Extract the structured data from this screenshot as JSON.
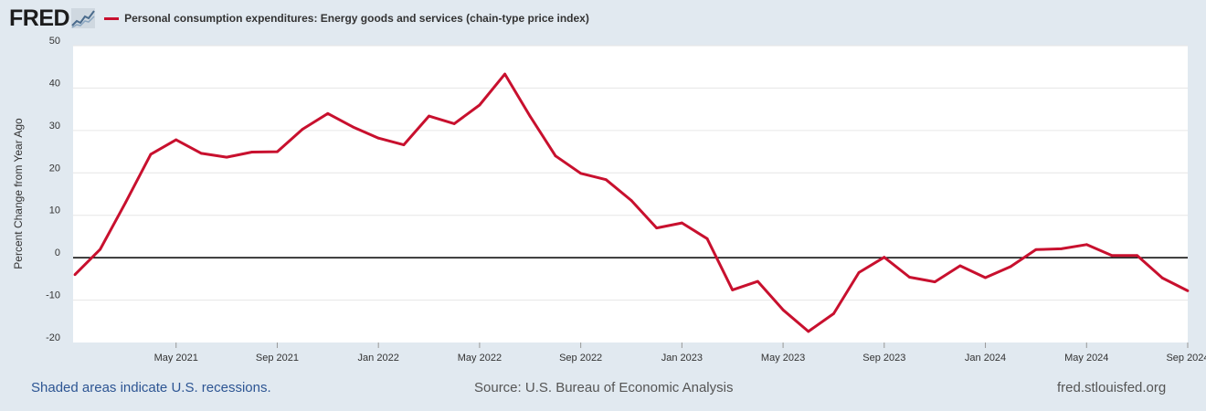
{
  "header": {
    "logo_text": "FRED",
    "series_title": "Personal consumption expenditures: Energy goods and services (chain-type price index)"
  },
  "footer": {
    "recession_note": "Shaded areas indicate U.S. recessions.",
    "source": "Source: U.S. Bureau of Economic Analysis",
    "site": "fred.stlouisfed.org"
  },
  "colors": {
    "line": "#c8102e",
    "background": "#e1e9f0",
    "plot": "#ffffff",
    "zero_line": "#000000"
  },
  "chart_data": {
    "type": "line",
    "title": "Personal consumption expenditures: Energy goods and services (chain-type price index)",
    "xlabel": "",
    "ylabel": "Percent Change from Year Ago",
    "ylim": [
      -20,
      50
    ],
    "yticks": [
      "50",
      "40",
      "30",
      "20",
      "10",
      "0",
      "-10",
      "-20"
    ],
    "ytick_values": [
      50,
      40,
      30,
      20,
      10,
      0,
      -10,
      -20
    ],
    "xticks": [
      {
        "label": "May 2021",
        "index": 4
      },
      {
        "label": "Sep 2021",
        "index": 8
      },
      {
        "label": "Jan 2022",
        "index": 12
      },
      {
        "label": "May 2022",
        "index": 16
      },
      {
        "label": "Sep 2022",
        "index": 20
      },
      {
        "label": "Jan 2023",
        "index": 24
      },
      {
        "label": "May 2023",
        "index": 28
      },
      {
        "label": "Sep 2023",
        "index": 32
      },
      {
        "label": "Jan 2024",
        "index": 36
      },
      {
        "label": "May 2024",
        "index": 40
      },
      {
        "label": "Sep 2024",
        "index": 44
      }
    ],
    "grid": true,
    "series": [
      {
        "name": "Personal consumption expenditures: Energy goods and services (chain-type price index)",
        "x": [
          "Jan 2021",
          "Feb 2021",
          "Mar 2021",
          "Apr 2021",
          "May 2021",
          "Jun 2021",
          "Jul 2021",
          "Aug 2021",
          "Sep 2021",
          "Oct 2021",
          "Nov 2021",
          "Dec 2021",
          "Jan 2022",
          "Feb 2022",
          "Mar 2022",
          "Apr 2022",
          "May 2022",
          "Jun 2022",
          "Jul 2022",
          "Aug 2022",
          "Sep 2022",
          "Oct 2022",
          "Nov 2022",
          "Dec 2022",
          "Jan 2023",
          "Feb 2023",
          "Mar 2023",
          "Apr 2023",
          "May 2023",
          "Jun 2023",
          "Jul 2023",
          "Aug 2023",
          "Sep 2023",
          "Oct 2023",
          "Nov 2023",
          "Dec 2023",
          "Jan 2024",
          "Feb 2024",
          "Mar 2024",
          "Apr 2024",
          "May 2024",
          "Jun 2024",
          "Jul 2024",
          "Aug 2024",
          "Sep 2024"
        ],
        "values": [
          -4.0,
          2.0,
          13.0,
          24.4,
          27.8,
          24.6,
          23.7,
          24.9,
          25.0,
          30.3,
          34.0,
          30.8,
          28.2,
          26.6,
          33.4,
          31.6,
          36.0,
          43.3,
          33.3,
          24.0,
          19.9,
          18.4,
          13.5,
          7.0,
          8.2,
          4.5,
          -7.6,
          -5.6,
          -12.3,
          -17.4,
          -13.2,
          -3.5,
          0.1,
          -4.6,
          -5.7,
          -1.9,
          -4.7,
          -2.1,
          1.9,
          2.1,
          3.1,
          0.5,
          0.5,
          -4.8,
          -7.8
        ]
      }
    ]
  }
}
